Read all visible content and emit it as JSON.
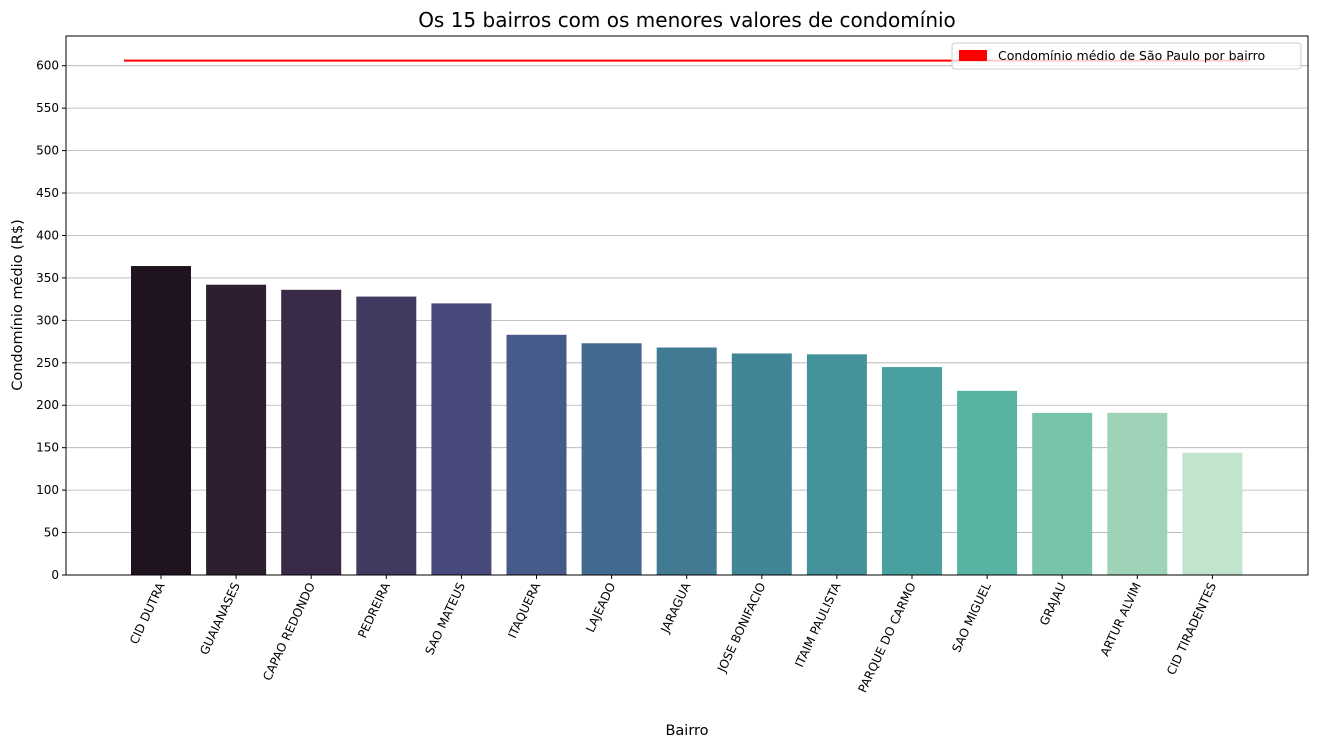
{
  "chart_data": {
    "type": "bar",
    "title": "Os 15 bairros com os menores valores de condomínio",
    "xlabel": "Bairro",
    "ylabel": "Condomínio médio (R$)",
    "categories": [
      "CID DUTRA",
      "GUAIANASES",
      "CAPAO REDONDO",
      "PEDREIRA",
      "SAO MATEUS",
      "ITAQUERA",
      "LAJEADO",
      "JARAGUA",
      "JOSE BONIFACIO",
      "ITAIM PAULISTA",
      "PARQUE DO CARMO",
      "SAO MIGUEL",
      "GRAJAU",
      "ARTUR ALVIM",
      "CID TIRADENTES"
    ],
    "values": [
      364,
      342,
      336,
      328,
      320,
      283,
      273,
      268,
      261,
      260,
      245,
      217,
      191,
      191,
      144
    ],
    "bar_colors": [
      "#1e131f",
      "#2d1f2f",
      "#392b48",
      "#413a61",
      "#474a7b",
      "#465b89",
      "#436b8f",
      "#427a94",
      "#408697",
      "#44929a",
      "#49a19f",
      "#59b3a3",
      "#77c5a8",
      "#9fd3b7",
      "#c3e4cc"
    ],
    "ylim": [
      0,
      635
    ],
    "yticks": [
      0,
      50,
      100,
      150,
      200,
      250,
      300,
      350,
      400,
      450,
      500,
      550,
      600
    ],
    "grid": "y",
    "reference_line": {
      "value": 606,
      "color": "#ff0000",
      "label": "Condomínio médio de São Paulo por bairro"
    },
    "legend_position": "top-right"
  }
}
